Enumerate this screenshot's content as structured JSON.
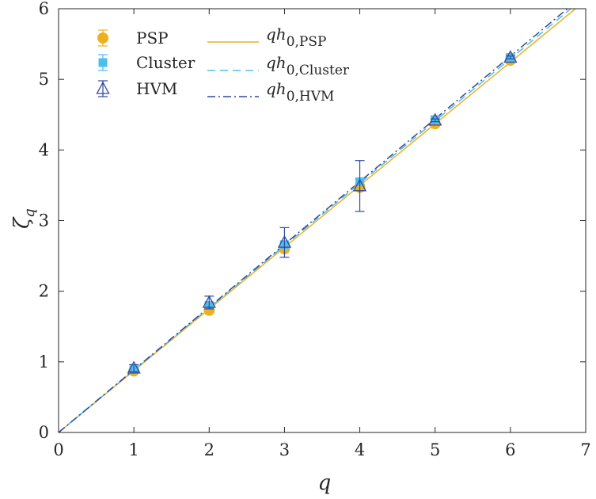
{
  "chart_data": {
    "type": "scatter",
    "xlabel": "q",
    "ylabel": "ζ_q",
    "xlim": [
      0,
      7
    ],
    "ylim": [
      0,
      6
    ],
    "xticks": [
      0,
      1,
      2,
      3,
      4,
      5,
      6,
      7
    ],
    "yticks": [
      0,
      1,
      2,
      3,
      4,
      5,
      6
    ],
    "grid": false,
    "legend_position": "top-left",
    "series": [
      {
        "name": "PSP",
        "kind": "errorbar",
        "marker": "circle",
        "color": "#EDB120",
        "x": [
          1,
          2,
          3,
          4,
          5,
          6
        ],
        "y": [
          0.87,
          1.73,
          2.6,
          3.47,
          4.37,
          5.27
        ],
        "err": [
          0.02,
          0.02,
          0.03,
          0.04,
          0.03,
          0.03
        ]
      },
      {
        "name": "Cluster",
        "kind": "errorbar",
        "marker": "square",
        "color": "#4DBEEE",
        "x": [
          1,
          2,
          3,
          4,
          5,
          6
        ],
        "y": [
          0.89,
          1.8,
          2.66,
          3.55,
          4.43,
          5.31
        ],
        "err": [
          0.02,
          0.03,
          0.03,
          0.04,
          0.04,
          0.04
        ]
      },
      {
        "name": "HVM",
        "kind": "errorbar",
        "marker": "triangle",
        "color": "#2E4A9E",
        "x": [
          1,
          2,
          3,
          4,
          5,
          6
        ],
        "y": [
          0.91,
          1.84,
          2.69,
          3.49,
          4.42,
          5.31
        ],
        "err": [
          0.05,
          0.09,
          0.21,
          0.36,
          0.02,
          0.02
        ]
      },
      {
        "name": "qh_0,PSP",
        "kind": "line",
        "style": "solid",
        "color": "#EDB120",
        "slope": 0.874
      },
      {
        "name": "qh_0,Cluster",
        "kind": "line",
        "style": "dashed",
        "color": "#4DBEEE",
        "slope": 0.882
      },
      {
        "name": "qh_0,HVM",
        "kind": "line",
        "style": "dashdot",
        "color": "#2E4A9E",
        "slope": 0.888
      }
    ],
    "legend": {
      "markers": [
        {
          "label": "PSP",
          "marker": "circle",
          "color": "#EDB120"
        },
        {
          "label": "Cluster",
          "marker": "square",
          "color": "#4DBEEE"
        },
        {
          "label": "HVM",
          "marker": "triangle",
          "color": "#2E4A9E"
        }
      ],
      "lines": [
        {
          "prefix": "qh",
          "sub": "0,PSP",
          "style": "solid",
          "color": "#EDB120"
        },
        {
          "prefix": "qh",
          "sub": "0,Cluster",
          "style": "dashed",
          "color": "#4DBEEE"
        },
        {
          "prefix": "qh",
          "sub": "0,HVM",
          "style": "dashdot",
          "color": "#2E4A9E"
        }
      ]
    }
  }
}
